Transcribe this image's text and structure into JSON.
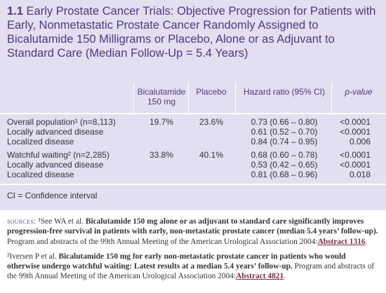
{
  "header": {
    "number": "1.1",
    "title": "Early Prostate Cancer Trials: Objective Progression for Patients with Early, Nonmetastatic Prostate Cancer Randomly Assigned to Bicalutamide 150 Milligrams or Placebo, Alone or as Adjuvant to Standard Care (Median Follow-Up = 5.4 Years)"
  },
  "table": {
    "columns": [
      "Bicalutamide 150 mg",
      "Placebo",
      "Hazard ratio (95% CI)",
      "p-value"
    ],
    "groups": [
      [
        [
          "Overall population¹ (n=8,113)",
          "19.7%",
          "23.6%",
          "0.73 (0.66 – 0.80)",
          "<0.0001"
        ],
        [
          "Locally advanced disease",
          null,
          null,
          "0.61 (0.52 – 0.70)",
          "<0.0001"
        ],
        [
          "Localized disease",
          null,
          null,
          "0.84 (0.74 – 0.95)",
          "0.006"
        ]
      ],
      [
        [
          "Watchful waiting² (n=2,285)",
          "33.8%",
          "40.1%",
          "0.68 (0.60 – 0.78)",
          "<0.0001"
        ],
        [
          "Locally advanced disease",
          null,
          null,
          "0.53 (0.42 – 0.65)",
          "<0.0001"
        ],
        [
          "Localized disease",
          null,
          null,
          "0.81 (0.68 – 0.96)",
          "0.018"
        ]
      ]
    ],
    "footnote": "CI = Confidence interval"
  },
  "sources": [
    {
      "label": "Sources:",
      "lead": "¹See WA et al. ",
      "title": "Bicalutamide 150 mg alone or as adjuvant to standard care significantly improves progression-free survival in patients with early, non-metastatic prostate cancer (median 5.4 years’ follow-up).",
      "text": " Program and abstracts of the 99th Annual Meeting of the American Urological Association 2004:",
      "link": "Abstract 1316",
      "end": "."
    },
    {
      "lead": "²Iversen P et al. ",
      "title": "Bicalutamide 150 mg for early non-metastatic prostate cancer in patients who would otherwise undergo watchful waiting: Latest results at a median 5.4 years’ follow-up.",
      "text": " Program and abstracts of the 99th Annual Meeting of the American Urological Association 2004:",
      "link": "Abstract 4821",
      "end": "."
    }
  ]
}
